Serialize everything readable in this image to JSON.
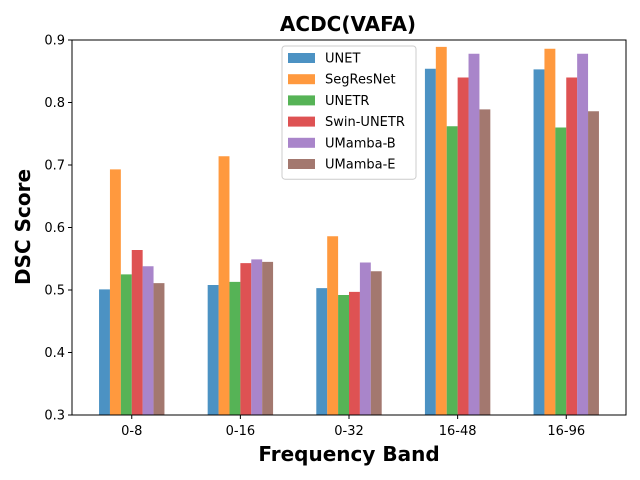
{
  "chart_data": {
    "type": "bar",
    "title": "ACDC(VAFA)",
    "xlabel": "Frequency Band",
    "ylabel": "DSC Score",
    "ylim": [
      0.3,
      0.9
    ],
    "yticks": [
      0.3,
      0.4,
      0.5,
      0.6,
      0.7,
      0.8,
      0.9
    ],
    "ytick_labels": [
      "0.3",
      "0.4",
      "0.5",
      "0.6",
      "0.7",
      "0.8",
      "0.9"
    ],
    "categories": [
      "0-8",
      "0-16",
      "0-32",
      "16-48",
      "16-96"
    ],
    "legend_position": "top-center",
    "series": [
      {
        "name": "UNET",
        "color": "#1f77b4",
        "values": [
          0.501,
          0.508,
          0.503,
          0.854,
          0.853
        ]
      },
      {
        "name": "SegResNet",
        "color": "#ff7f0e",
        "values": [
          0.693,
          0.714,
          0.586,
          0.889,
          0.886
        ]
      },
      {
        "name": "UNETR",
        "color": "#2ca02c",
        "values": [
          0.525,
          0.513,
          0.492,
          0.762,
          0.76
        ]
      },
      {
        "name": "Swin-UNETR",
        "color": "#d62728",
        "values": [
          0.564,
          0.543,
          0.497,
          0.84,
          0.84
        ]
      },
      {
        "name": "UMamba-B",
        "color": "#9467bd",
        "values": [
          0.538,
          0.549,
          0.544,
          0.878,
          0.878
        ]
      },
      {
        "name": "UMamba-E",
        "color": "#8c564b",
        "values": [
          0.511,
          0.545,
          0.53,
          0.789,
          0.786
        ]
      }
    ]
  }
}
